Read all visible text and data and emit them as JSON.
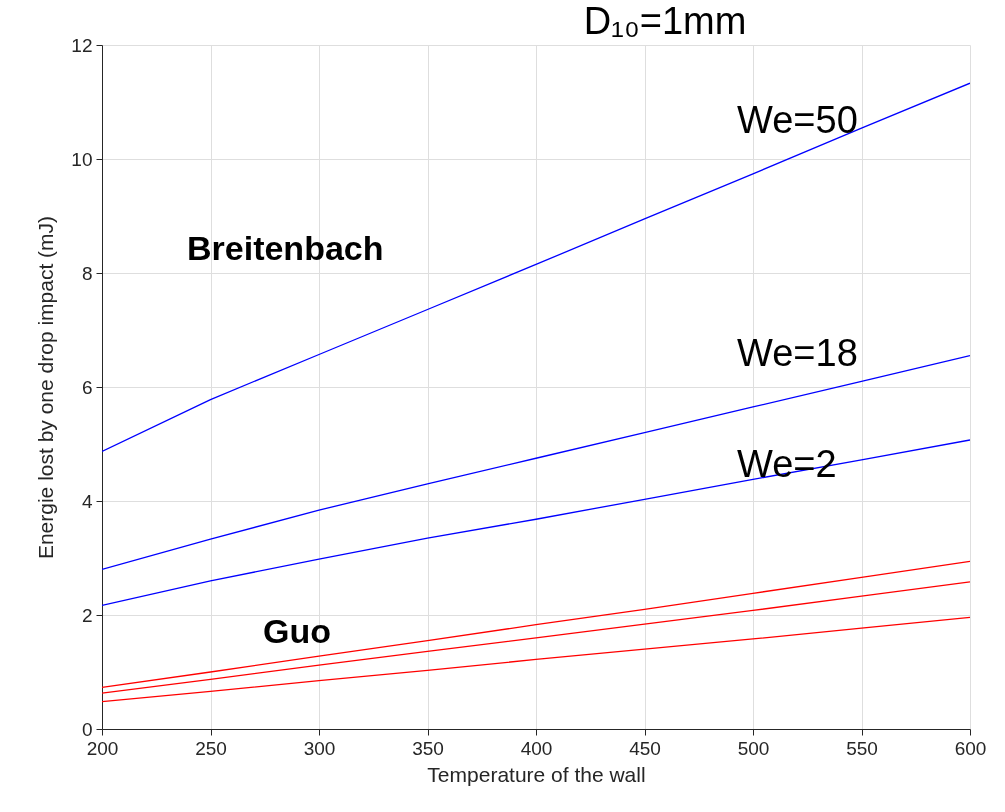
{
  "chart_data": {
    "type": "line",
    "title": "D₁₀=1mm",
    "xlabel": "Temperature of the wall",
    "ylabel": "Energie lost by one drop impact (mJ)",
    "x": [
      200,
      250,
      300,
      350,
      400,
      450,
      500,
      550,
      600
    ],
    "series": [
      {
        "color": "#0000ff",
        "values": [
          4.87,
          5.78,
          6.57,
          7.36,
          8.15,
          8.95,
          9.74,
          10.54,
          11.33
        ]
      },
      {
        "color": "#0000ff",
        "values": [
          2.8,
          3.33,
          3.84,
          4.3,
          4.75,
          5.2,
          5.65,
          6.1,
          6.55
        ]
      },
      {
        "color": "#0000ff",
        "values": [
          2.17,
          2.6,
          2.98,
          3.35,
          3.68,
          4.03,
          4.38,
          4.72,
          5.07
        ]
      },
      {
        "color": "#ff0000",
        "values": [
          0.73,
          1.0,
          1.28,
          1.55,
          1.83,
          2.1,
          2.38,
          2.66,
          2.94
        ]
      },
      {
        "color": "#ff0000",
        "values": [
          0.63,
          0.87,
          1.12,
          1.36,
          1.6,
          1.84,
          2.08,
          2.33,
          2.58
        ]
      },
      {
        "color": "#ff0000",
        "values": [
          0.48,
          0.66,
          0.85,
          1.03,
          1.22,
          1.4,
          1.58,
          1.77,
          1.96
        ]
      }
    ],
    "annotations": [
      "Breitenbach",
      "Guo",
      "We=50",
      "We=18",
      "We=2"
    ],
    "xlim": [
      200,
      600
    ],
    "xticks": [
      200,
      250,
      300,
      350,
      400,
      450,
      500,
      550,
      600
    ],
    "ylim": [
      0,
      12
    ],
    "yticks": [
      0,
      2,
      4,
      6,
      8,
      10,
      12
    ],
    "grid": true,
    "marker": "none",
    "line_style": "solid"
  }
}
